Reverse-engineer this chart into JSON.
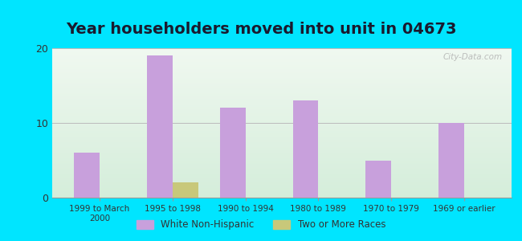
{
  "title": "Year householders moved into unit in 04673",
  "categories": [
    "1999 to March\n2000",
    "1995 to 1998",
    "1990 to 1994",
    "1980 to 1989",
    "1970 to 1979",
    "1969 or earlier"
  ],
  "white_non_hispanic": [
    6,
    19,
    12,
    13,
    5,
    10
  ],
  "two_or_more_races": [
    0,
    2,
    0,
    0,
    0,
    0
  ],
  "bar_color_white": "#c8a0dc",
  "bar_color_two": "#c8c87a",
  "ylim": [
    0,
    20
  ],
  "yticks": [
    0,
    10,
    20
  ],
  "background_outer": "#00e5ff",
  "background_inner_top": "#f0f8f0",
  "background_inner_bottom": "#d4edda",
  "legend_white_label": "White Non-Hispanic",
  "legend_two_label": "Two or More Races",
  "title_fontsize": 14,
  "watermark": "City-Data.com"
}
